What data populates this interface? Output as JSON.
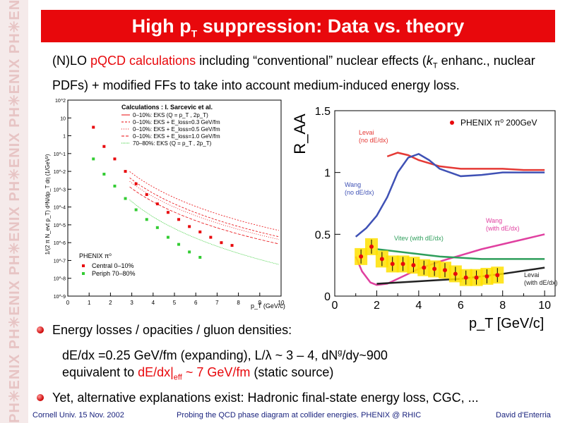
{
  "sidebar": {
    "watermark": "PH✳ENIX  PH✳ENIX  PH✳ENIX  PH✳ENIX  PH✳ENIX  PH✳ENIX"
  },
  "title": {
    "main": "High p",
    "sub": "T",
    "rest": " suppression: Data vs. theory"
  },
  "intro": {
    "p1": "(N)LO ",
    "p2_red": "pQCD calculations",
    "p3": " including “conventional” nuclear effects (",
    "p4_italic": "k",
    "p5_sub": "T",
    "p6": " enhanc., nuclear PDFs) + modified FFs to take into account medium-induced energy loss."
  },
  "colors": {
    "title_bg": "#e8080c",
    "accent_red": "#e8080c",
    "footer_blue": "#1a237e"
  },
  "chart_data": [
    {
      "type": "scatter",
      "title": "",
      "ylabel": "1/(2 π N_evt p_T) d²N/dp_T dη (1/GeV²)",
      "xlabel": "p_T (GeV/c)",
      "xlim": [
        0,
        10
      ],
      "ylog": true,
      "ylim": [
        1e-09,
        100
      ],
      "x_ticks": [
        "0",
        "1",
        "2",
        "3",
        "4",
        "5",
        "6",
        "7",
        "8",
        "9",
        "10"
      ],
      "y_ticks": [
        "10^-9",
        "10^-8",
        "10^-7",
        "10^-6",
        "10^-5",
        "10^-4",
        "10^-3",
        "10^-2",
        "10^-1",
        "1",
        "10",
        "10^2"
      ],
      "legend_calc_title": "Calculations : I. Sarcevic et al.",
      "legend_calc": [
        "0–10%: EKS (Q = p_T , 2p_T)",
        "0–10%: EKS + E_loss=0.3 GeV/fm",
        "0–10%: EKS + E_loss=0.5 GeV/fm",
        "0–10%: EKS + E_loss=1.0 GeV/fm",
        "70–80%: EKS (Q = p_T , 2p_T)"
      ],
      "legend_data_title": "PHENIX π⁰",
      "series": [
        {
          "name": "Central 0–10%",
          "color": "#e8080c",
          "x": [
            1.2,
            1.7,
            2.2,
            2.7,
            3.2,
            3.7,
            4.2,
            4.7,
            5.2,
            5.7,
            6.2,
            6.7,
            7.2,
            7.7
          ],
          "y": [
            3,
            0.25,
            0.05,
            0.01,
            0.002,
            0.0005,
            0.00015,
            5e-05,
            2e-05,
            8e-06,
            4e-06,
            2e-06,
            1e-06,
            7e-07
          ]
        },
        {
          "name": "Periph 70–80%",
          "color": "#33cc33",
          "x": [
            1.2,
            1.7,
            2.2,
            2.7,
            3.2,
            3.7,
            4.2,
            4.7,
            5.2,
            5.7,
            6.2
          ],
          "y": [
            0.05,
            0.007,
            0.0015,
            0.0003,
            7e-05,
            2e-05,
            7e-06,
            2e-06,
            8e-07,
            3e-07,
            1.5e-07
          ]
        }
      ]
    },
    {
      "type": "line",
      "title": "",
      "ylabel": "R_AA",
      "xlabel": "p_T [GeV/c]",
      "xlim": [
        0,
        10.5
      ],
      "ylim": [
        0,
        1.5
      ],
      "x_ticks": [
        "0",
        "2",
        "4",
        "6",
        "8",
        "10"
      ],
      "y_ticks": [
        "0",
        "0.5",
        "1",
        "1.5"
      ],
      "legend": "PHENIX π⁰ 200GeV",
      "labels": {
        "levai_no": [
          "Levai",
          "(no dE/dx)"
        ],
        "wang_no": [
          "Wang",
          "(no dE/dx)"
        ],
        "wang_with": [
          "Wang",
          "(with dE/dx)"
        ],
        "vitev": "Vitev (with dE/dx)",
        "levai_with": [
          "Levai",
          "(with dE/dx)"
        ]
      },
      "series": [
        {
          "name": "Levai (no dE/dx)",
          "color": "#e53935",
          "x": [
            2.5,
            3,
            3.5,
            4,
            5,
            6,
            7,
            8,
            9,
            10
          ],
          "y": [
            1.13,
            1.16,
            1.14,
            1.1,
            1.05,
            1.03,
            1.03,
            1.03,
            1.02,
            1.02
          ]
        },
        {
          "name": "Wang (no dE/dx)",
          "color": "#3f51b5",
          "x": [
            1,
            1.5,
            2,
            2.5,
            3,
            3.5,
            4,
            4.5,
            5,
            6,
            7,
            8,
            9,
            10
          ],
          "y": [
            0.48,
            0.55,
            0.65,
            0.8,
            1.0,
            1.12,
            1.15,
            1.1,
            1.03,
            0.97,
            0.98,
            1.0,
            1.0,
            1.0
          ]
        },
        {
          "name": "Wang (with dE/dx)",
          "color": "#e040a0",
          "x": [
            1,
            1.3,
            1.7,
            2,
            2.5,
            3,
            4,
            5,
            6,
            7,
            8,
            9,
            10
          ],
          "y": [
            0.32,
            0.2,
            0.11,
            0.09,
            0.1,
            0.14,
            0.22,
            0.28,
            0.33,
            0.38,
            0.42,
            0.46,
            0.5
          ]
        },
        {
          "name": "Vitev (with dE/dx)",
          "color": "#2e9e5b",
          "x": [
            2,
            3,
            4,
            5,
            6,
            7,
            8,
            9,
            10
          ],
          "y": [
            0.38,
            0.36,
            0.34,
            0.32,
            0.31,
            0.3,
            0.3,
            0.3,
            0.3
          ]
        },
        {
          "name": "Levai (with dE/dx)",
          "color": "#222222",
          "x": [
            2,
            4,
            6,
            8,
            10
          ],
          "y": [
            0.1,
            0.12,
            0.14,
            0.18,
            0.23
          ]
        },
        {
          "name": "PHENIX π⁰ 200GeV",
          "color": "#e8080c",
          "kind": "points",
          "x": [
            1.25,
            1.75,
            2.25,
            2.75,
            3.25,
            3.75,
            4.25,
            4.75,
            5.25,
            5.75,
            6.25,
            6.75,
            7.25,
            7.75
          ],
          "y": [
            0.32,
            0.4,
            0.3,
            0.26,
            0.26,
            0.25,
            0.23,
            0.22,
            0.21,
            0.18,
            0.15,
            0.15,
            0.16,
            0.17
          ]
        }
      ]
    }
  ],
  "bullets": {
    "b1": "Energy losses / opacities / gluon densities:",
    "s1a": "dE/dx =0.25 GeV/fm (expanding), L/λ ~ 3 – 4, dN",
    "s1a_sup": "g",
    "s1b": "/dy~900",
    "s2a": "equivalent to  ",
    "s2b_red": "dE/dx|",
    "s2b_sub": "eff",
    "s2c_red": " ~ 7 GeV/fm",
    "s2d": " (static source)",
    "b2": "Yet, alternative explanations exist: Hadronic final-state energy loss, CGC, ..."
  },
  "footer": {
    "left": "Cornell Univ. 15 Nov.  2002",
    "center": "Probing the QCD phase diagram at collider energies. PHENIX @ RHIC",
    "right": "David d'Enterria"
  }
}
